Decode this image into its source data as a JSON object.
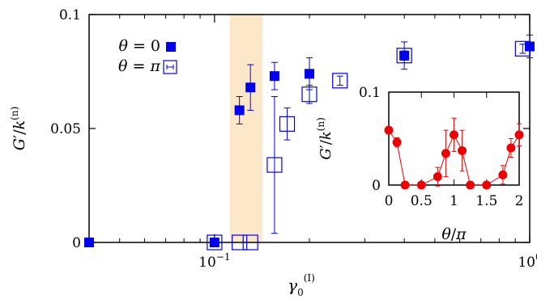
{
  "chart_data": [
    {
      "type": "scatter",
      "xscale": "log",
      "xlim": [
        0.04,
        1.0
      ],
      "ylim": [
        0,
        0.1
      ],
      "xlabel": "γ0(I)",
      "ylabel": "G′/k(n)",
      "xticks": [
        {
          "value": 0.1,
          "label": "10−1"
        },
        {
          "value": 1.0,
          "label": "100"
        }
      ],
      "yticks": [
        {
          "value": 0,
          "label": "0"
        },
        {
          "value": 0.05,
          "label": "0.05"
        },
        {
          "value": 0.1,
          "label": "0.1"
        }
      ],
      "shaded_band": {
        "x": [
          0.112,
          0.142
        ],
        "color": "#fce8c8"
      },
      "legend_position": "top-left",
      "colors": {
        "series": "#0000ee"
      },
      "series": [
        {
          "name": "θ = 0",
          "marker": "filled-square",
          "points": [
            {
              "x": 0.04,
              "y": 0.0,
              "err": 0
            },
            {
              "x": 0.1,
              "y": 0.0,
              "err": 0
            },
            {
              "x": 0.12,
              "y": 0.058,
              "err": 0.006
            },
            {
              "x": 0.13,
              "y": 0.068,
              "err": 0.01
            },
            {
              "x": 0.155,
              "y": 0.073,
              "err": 0.006
            },
            {
              "x": 0.2,
              "y": 0.074,
              "err": 0.007
            },
            {
              "x": 0.4,
              "y": 0.082,
              "err": 0.006
            },
            {
              "x": 1.0,
              "y": 0.086,
              "err": 0.005
            }
          ]
        },
        {
          "name": "θ = π",
          "marker": "open-square",
          "points": [
            {
              "x": 0.1,
              "y": 0.0,
              "err": 0
            },
            {
              "x": 0.12,
              "y": 0.0,
              "err": 0
            },
            {
              "x": 0.13,
              "y": 0.0,
              "err": 0
            },
            {
              "x": 0.155,
              "y": 0.034,
              "err": 0.03
            },
            {
              "x": 0.17,
              "y": 0.052,
              "err": 0.007
            },
            {
              "x": 0.2,
              "y": 0.065,
              "err": 0.004
            },
            {
              "x": 0.25,
              "y": 0.071,
              "err": 0.002
            },
            {
              "x": 0.4,
              "y": 0.082,
              "err": 0.002
            },
            {
              "x": 0.95,
              "y": 0.085,
              "err": 0.002
            }
          ]
        }
      ],
      "legend": [
        {
          "label": "θ = 0",
          "marker": "filled-square"
        },
        {
          "label": "θ = π",
          "marker": "open-square"
        }
      ]
    },
    {
      "type": "line",
      "xlim": [
        0,
        2
      ],
      "ylim": [
        0,
        0.1
      ],
      "xlabel": "θ/π",
      "ylabel": "G′/k(n)",
      "xticks": [
        {
          "value": 0,
          "label": "0"
        },
        {
          "value": 0.5,
          "label": "0.5"
        },
        {
          "value": 1,
          "label": "1"
        },
        {
          "value": 1.5,
          "label": "1.5"
        },
        {
          "value": 2,
          "label": "2"
        }
      ],
      "yticks": [
        {
          "value": 0,
          "label": "0"
        },
        {
          "value": 0.1,
          "label": "0.1"
        }
      ],
      "colors": {
        "series": "#ee0000"
      },
      "series": [
        {
          "marker": "filled-circle",
          "points": [
            {
              "x": 0.0,
              "y": 0.059,
              "err": 0
            },
            {
              "x": 0.125,
              "y": 0.046,
              "err": 0.005
            },
            {
              "x": 0.25,
              "y": 0.0,
              "err": 0
            },
            {
              "x": 0.5,
              "y": 0.0,
              "err": 0
            },
            {
              "x": 0.75,
              "y": 0.009,
              "err": 0.01
            },
            {
              "x": 0.875,
              "y": 0.034,
              "err": 0.025
            },
            {
              "x": 1.0,
              "y": 0.054,
              "err": 0.018
            },
            {
              "x": 1.125,
              "y": 0.037,
              "err": 0.022
            },
            {
              "x": 1.25,
              "y": 0.0,
              "err": 0
            },
            {
              "x": 1.5,
              "y": 0.0,
              "err": 0
            },
            {
              "x": 1.75,
              "y": 0.011,
              "err": 0.01
            },
            {
              "x": 1.875,
              "y": 0.04,
              "err": 0.01
            },
            {
              "x": 2.0,
              "y": 0.054,
              "err": 0.012
            }
          ]
        }
      ]
    }
  ]
}
